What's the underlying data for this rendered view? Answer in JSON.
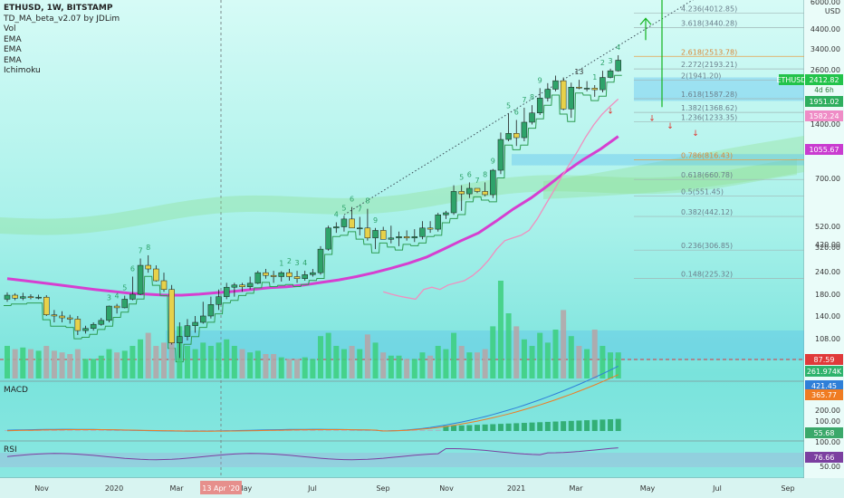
{
  "legend": {
    "symbol": "ETHUSD, 1W, BITSTAMP",
    "indicators": [
      "TD_MA_beta_v2.07 by JDLim",
      "Vol",
      "EMA",
      "EMA",
      "EMA",
      "Ichimoku"
    ]
  },
  "colors": {
    "up": "#2ea36a",
    "down": "#e7d14a",
    "ema_fast": "#2e9c52",
    "ema_mid": "#f08fbf",
    "ema_slow": "#d63fd0",
    "fib": "#6b7f8c",
    "trend": "#3a4a55",
    "arrow_up": "#12b31d",
    "arrow_down": "#e0302a",
    "vol_up": "#3ccf7c",
    "vol_down": "#b7a3a6",
    "macd": "#2f7fd8",
    "signal": "#f07c22",
    "rsi": "#7b3fa0"
  },
  "price_axis": {
    "unit": "USD",
    "ticks": [
      "6000.00",
      "4400.00",
      "3400.00",
      "2600.00",
      "1400.00",
      "700.00",
      "520.00",
      "420.00",
      "320.00",
      "240.00",
      "180.00",
      "140.00",
      "108.00"
    ],
    "tags": [
      {
        "label": "ETHUSD",
        "value": "2412.82",
        "countdown": "4d 6h",
        "color": "#22c34a"
      },
      {
        "value": "1951.02",
        "color": "#2eae5e"
      },
      {
        "value": "1582.24",
        "color": "#ef8cc6"
      },
      {
        "value": "1055.67",
        "color": "#c93cd0"
      },
      {
        "value": "87.59",
        "color": "#e03a3a"
      },
      {
        "value": "261.974K",
        "color": "#2eb36c"
      }
    ]
  },
  "fib_levels": [
    {
      "label": "4.236(4012.85)",
      "price": 4012.85
    },
    {
      "label": "3.618(3440.28)",
      "price": 3440.28
    },
    {
      "label": "2.618(2513.78)",
      "price": 2513.78,
      "highlight": true
    },
    {
      "label": "2.272(2193.21)",
      "price": 2193.21
    },
    {
      "label": "2(1941.20)",
      "price": 1941.2
    },
    {
      "label": "1.618(1587.28)",
      "price": 1587.28
    },
    {
      "label": "1.382(1368.62)",
      "price": 1368.62
    },
    {
      "label": "1.236(1233.35)",
      "price": 1233.35
    },
    {
      "label": "0.786(816.43)",
      "price": 816.43,
      "highlight": true
    },
    {
      "label": "0.618(660.78)",
      "price": 660.78
    },
    {
      "label": "0.5(551.45)",
      "price": 551.45
    },
    {
      "label": "0.382(442.12)",
      "price": 442.12
    },
    {
      "label": "0.236(306.85)",
      "price": 306.85
    },
    {
      "label": "0.148(225.32)",
      "price": 225.32
    }
  ],
  "macd": {
    "label": "MACD",
    "ticks": [
      "200.00",
      "100.00"
    ],
    "tags": [
      {
        "value": "421.45",
        "color": "#2f7fd8"
      },
      {
        "value": "365.77",
        "color": "#f07c22"
      },
      {
        "value": "55.68",
        "color": "#3aa86a"
      }
    ]
  },
  "rsi": {
    "label": "RSI",
    "ticks": [
      "100.00",
      "50.00"
    ],
    "tags": [
      {
        "value": "76.66",
        "color": "#7b3fa0"
      }
    ]
  },
  "time_axis": {
    "labels": [
      "Nov",
      "2020",
      "Mar",
      "May",
      "Jul",
      "Sep",
      "Nov",
      "2021",
      "Mar",
      "May",
      "Jul",
      "Sep"
    ],
    "cursor_label": "13 Apr '20"
  },
  "chart_data": {
    "type": "candlestick",
    "title": "ETHUSD, 1W, BITSTAMP",
    "ylabel": "USD",
    "y_scale": "log",
    "ylim": [
      90,
      6000
    ],
    "current_price": 2412.82,
    "x_range": [
      "2019-10-14",
      "2021-09-30"
    ],
    "weeks": [
      "2019-10-14",
      "2019-10-21",
      "2019-10-28",
      "2019-11-04",
      "2019-11-11",
      "2019-11-18",
      "2019-11-25",
      "2019-12-02",
      "2019-12-09",
      "2019-12-16",
      "2019-12-23",
      "2019-12-30",
      "2020-01-06",
      "2020-01-13",
      "2020-01-20",
      "2020-01-27",
      "2020-02-03",
      "2020-02-10",
      "2020-02-17",
      "2020-02-24",
      "2020-03-02",
      "2020-03-09",
      "2020-03-16",
      "2020-03-23",
      "2020-03-30",
      "2020-04-06",
      "2020-04-13",
      "2020-04-20",
      "2020-04-27",
      "2020-05-04",
      "2020-05-11",
      "2020-05-18",
      "2020-05-25",
      "2020-06-01",
      "2020-06-08",
      "2020-06-15",
      "2020-06-22",
      "2020-06-29",
      "2020-07-06",
      "2020-07-13",
      "2020-07-20",
      "2020-07-27",
      "2020-08-03",
      "2020-08-10",
      "2020-08-17",
      "2020-08-24",
      "2020-08-31",
      "2020-09-07",
      "2020-09-14",
      "2020-09-21",
      "2020-09-28",
      "2020-10-05",
      "2020-10-12",
      "2020-10-19",
      "2020-10-26",
      "2020-11-02",
      "2020-11-09",
      "2020-11-16",
      "2020-11-23",
      "2020-11-30",
      "2020-12-07",
      "2020-12-14",
      "2020-12-21",
      "2020-12-28",
      "2021-01-04",
      "2021-01-11",
      "2021-01-18",
      "2021-01-25",
      "2021-02-01",
      "2021-02-08",
      "2021-02-15",
      "2021-02-22",
      "2021-03-01",
      "2021-03-08",
      "2021-03-15",
      "2021-03-22",
      "2021-03-29",
      "2021-04-05",
      "2021-04-12"
    ],
    "open": [
      180,
      188,
      182,
      185,
      183,
      184,
      152,
      150,
      147,
      145,
      128,
      131,
      137,
      143,
      167,
      164,
      180,
      190,
      260,
      250,
      220,
      200,
      112,
      120,
      135,
      140,
      150,
      170,
      185,
      205,
      210,
      206,
      214,
      240,
      233,
      230,
      240,
      230,
      225,
      235,
      240,
      310,
      390,
      395,
      430,
      390,
      390,
      350,
      380,
      345,
      350,
      355,
      350,
      355,
      390,
      385,
      450,
      460,
      580,
      565,
      600,
      580,
      560,
      730,
      1020,
      1090,
      1040,
      1230,
      1360,
      1600,
      1760,
      1930,
      1420,
      1800,
      1780,
      1780,
      1750,
      2000,
      2150
    ],
    "high": [
      194,
      192,
      193,
      190,
      189,
      188,
      160,
      158,
      152,
      150,
      135,
      140,
      147,
      168,
      171,
      187,
      230,
      280,
      290,
      260,
      240,
      210,
      140,
      145,
      150,
      175,
      185,
      200,
      215,
      215,
      215,
      230,
      245,
      250,
      245,
      244,
      250,
      245,
      245,
      250,
      320,
      400,
      415,
      445,
      490,
      440,
      480,
      390,
      395,
      400,
      375,
      380,
      385,
      420,
      420,
      460,
      470,
      620,
      620,
      640,
      600,
      640,
      740,
      1100,
      1350,
      1260,
      1440,
      1480,
      1780,
      1880,
      2040,
      2000,
      1890,
      1950,
      1920,
      1840,
      2150,
      2200,
      2545
    ],
    "low": [
      175,
      178,
      178,
      180,
      180,
      150,
      140,
      140,
      138,
      122,
      124,
      128,
      135,
      140,
      154,
      163,
      178,
      188,
      240,
      218,
      195,
      110,
      95,
      115,
      125,
      138,
      146,
      160,
      180,
      185,
      195,
      200,
      212,
      225,
      215,
      218,
      220,
      215,
      220,
      230,
      235,
      305,
      370,
      375,
      400,
      360,
      340,
      310,
      355,
      330,
      320,
      340,
      335,
      345,
      370,
      375,
      430,
      450,
      470,
      540,
      570,
      550,
      540,
      700,
      1000,
      950,
      1000,
      1200,
      1330,
      1540,
      1720,
      1400,
      1290,
      1760,
      1720,
      1620,
      1700,
      1980,
      2130
    ],
    "close": [
      188,
      182,
      185,
      183,
      184,
      152,
      150,
      147,
      145,
      128,
      131,
      137,
      143,
      167,
      164,
      180,
      190,
      260,
      250,
      220,
      200,
      112,
      120,
      135,
      140,
      150,
      170,
      185,
      205,
      210,
      206,
      214,
      240,
      233,
      230,
      240,
      230,
      225,
      235,
      240,
      310,
      390,
      395,
      430,
      390,
      390,
      350,
      380,
      345,
      350,
      355,
      350,
      355,
      390,
      385,
      450,
      460,
      580,
      565,
      600,
      580,
      560,
      730,
      1020,
      1090,
      1040,
      1230,
      1360,
      1600,
      1760,
      1930,
      1420,
      1800,
      1780,
      1780,
      1750,
      2000,
      2150,
      2412
    ],
    "volume_level": [
      0.2,
      0.18,
      0.19,
      0.18,
      0.17,
      0.2,
      0.17,
      0.16,
      0.15,
      0.18,
      0.12,
      0.12,
      0.14,
      0.18,
      0.16,
      0.17,
      0.2,
      0.24,
      0.28,
      0.2,
      0.22,
      0.46,
      0.32,
      0.2,
      0.18,
      0.22,
      0.2,
      0.22,
      0.24,
      0.2,
      0.18,
      0.16,
      0.17,
      0.15,
      0.15,
      0.13,
      0.12,
      0.12,
      0.13,
      0.12,
      0.26,
      0.28,
      0.2,
      0.18,
      0.2,
      0.18,
      0.27,
      0.22,
      0.16,
      0.14,
      0.14,
      0.12,
      0.12,
      0.16,
      0.14,
      0.2,
      0.18,
      0.28,
      0.2,
      0.16,
      0.16,
      0.18,
      0.32,
      0.6,
      0.4,
      0.32,
      0.24,
      0.2,
      0.28,
      0.22,
      0.3,
      0.42,
      0.26,
      0.2,
      0.18,
      0.3,
      0.2,
      0.16,
      0.16
    ],
    "td_counts": [
      {
        "week": "2020-01-13",
        "labels": [
          "3",
          "4",
          "5",
          "6",
          "7",
          "8"
        ],
        "color": "#2ea36a"
      },
      {
        "week": "2020-06-15",
        "labels": [
          "1",
          "2",
          "3",
          "4"
        ],
        "color": "#2ea36a"
      },
      {
        "week": "2020-08-03",
        "labels": [
          "4",
          "5",
          "6",
          "7",
          "8",
          "9"
        ],
        "color": "#2ea36a"
      },
      {
        "week": "2020-11-23",
        "labels": [
          "5",
          "6",
          "7",
          "8",
          "9"
        ],
        "color": "#2ea36a"
      },
      {
        "week": "2021-01-04",
        "labels": [
          "5",
          "6",
          "7",
          "8",
          "9"
        ],
        "color": "#2ea36a"
      },
      {
        "week": "2021-03-22",
        "labels": [
          "1",
          "2",
          "3",
          "4",
          "5"
        ],
        "color": "#2ea36a"
      },
      {
        "week": "2021-03-08",
        "labels": [
          "13"
        ],
        "color": "#333333"
      }
    ],
    "ema_slow_values": [
      225,
      220,
      215,
      210,
      205,
      200,
      196,
      192,
      190,
      188,
      188,
      190,
      193,
      196,
      200,
      204,
      206,
      210,
      216,
      222,
      230,
      240,
      252,
      266,
      284,
      310,
      340,
      370,
      420,
      480,
      540,
      620,
      720,
      820,
      920,
      1055
    ],
    "ema_mid_values": [
      195,
      190,
      186,
      183,
      180,
      200,
      205,
      200,
      210,
      215,
      220,
      232,
      250,
      275,
      310,
      340,
      350,
      360,
      380,
      430,
      500,
      580,
      680,
      780,
      900,
      1050,
      1200,
      1340,
      1460,
      1582
    ],
    "annotation": "Dotted trend line from Sep 2020 highs extended toward ~6000; large up arrow near 1400-4400 and small down arrows near 1200-1400"
  }
}
